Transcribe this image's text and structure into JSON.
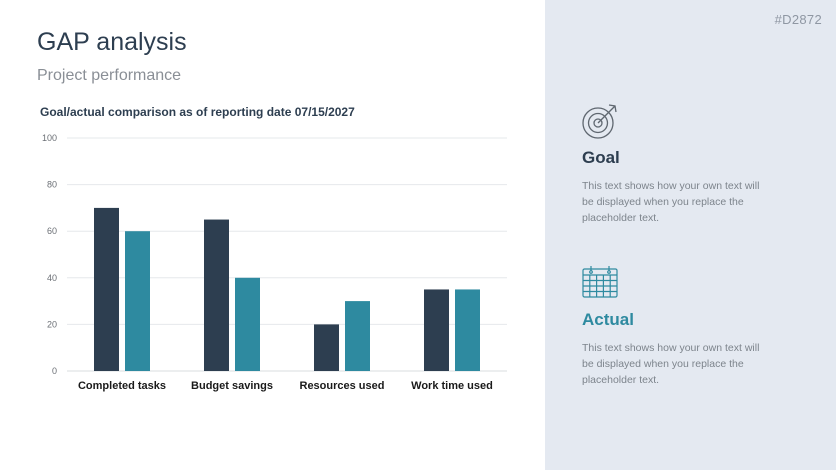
{
  "header": {
    "title": "GAP analysis",
    "subtitle": "Project performance"
  },
  "side": {
    "code": "#D2872",
    "goal": {
      "icon": "target-icon",
      "title": "Goal",
      "text": "This text shows how your own text will be displayed when you replace the placeholder text."
    },
    "actual": {
      "icon": "calendar-icon",
      "title": "Actual",
      "text": "This text shows how your own text will be displayed when you replace the placeholder text."
    }
  },
  "colors": {
    "goal": "#2d3e50",
    "actual": "#2e8aa0",
    "panel": "#e4e9f1"
  },
  "chart_data": {
    "type": "bar",
    "title": "Goal/actual comparison as of reporting date 07/15/2027",
    "categories": [
      "Completed tasks",
      "Budget savings",
      "Resources used",
      "Work time used"
    ],
    "series": [
      {
        "values": [
          70,
          65,
          20,
          35
        ]
      },
      {
        "values": [
          60,
          40,
          30,
          35
        ]
      }
    ],
    "yticks": [
      0,
      20,
      40,
      60,
      80,
      100
    ],
    "ylim": [
      0,
      100
    ],
    "grid": true,
    "legend": "none"
  }
}
